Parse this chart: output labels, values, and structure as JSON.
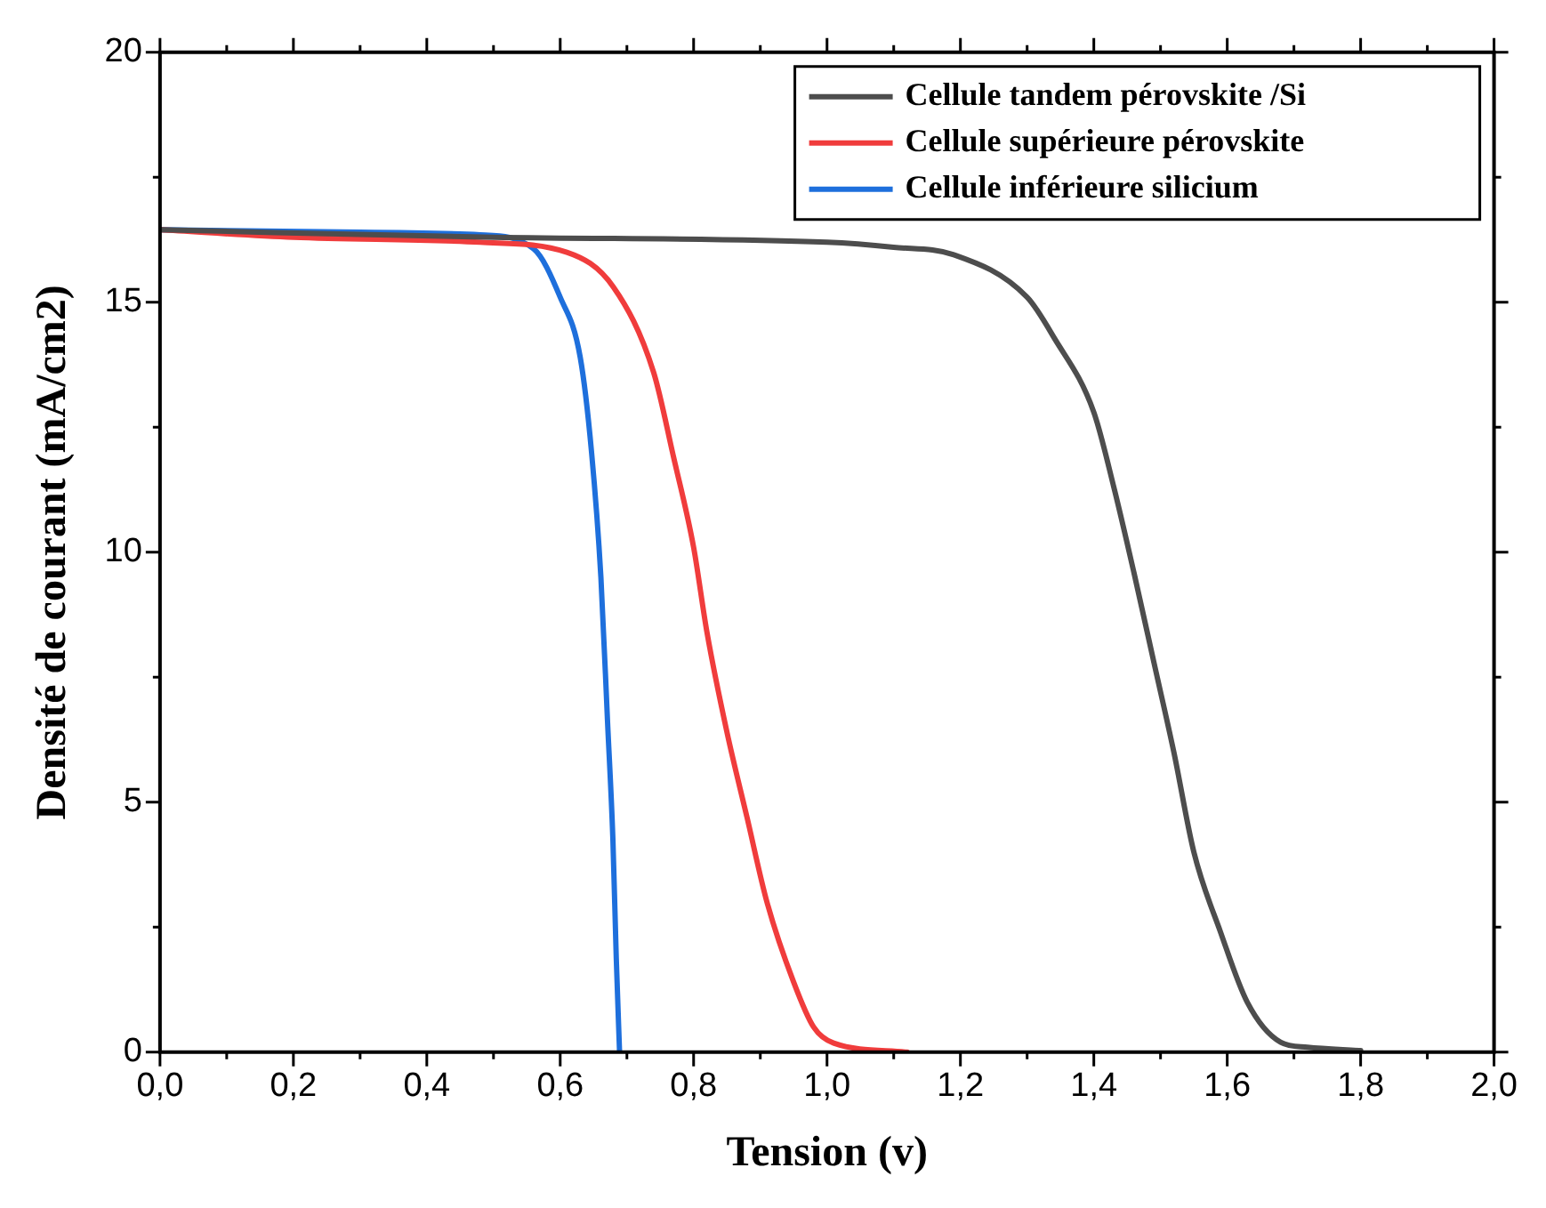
{
  "chart_data": {
    "type": "line",
    "xlabel": "Tension (v)",
    "ylabel": "Densité de courant (mA/cm2)",
    "xlim": [
      0,
      2
    ],
    "ylim": [
      0,
      20
    ],
    "xticks": [
      {
        "value": 0,
        "label": "0,0"
      },
      {
        "value": 0.2,
        "label": "0,2"
      },
      {
        "value": 0.4,
        "label": "0,4"
      },
      {
        "value": 0.6,
        "label": "0,6"
      },
      {
        "value": 0.8,
        "label": "0,8"
      },
      {
        "value": 1,
        "label": "1,0"
      },
      {
        "value": 1.2,
        "label": "1,2"
      },
      {
        "value": 1.4,
        "label": "1,4"
      },
      {
        "value": 1.6,
        "label": "1,6"
      },
      {
        "value": 1.8,
        "label": "1,8"
      },
      {
        "value": 2,
        "label": "2,0"
      }
    ],
    "yticks": [
      0,
      5,
      10,
      15,
      20
    ],
    "grid": false,
    "legend": "top right",
    "marker": "none",
    "line_style": "solid",
    "series": [
      {
        "name": "Cellule tandem pérovskite /Si",
        "color": "#4d4d4d",
        "x": [
          0,
          0.5,
          1.0,
          1.1,
          1.19,
          1.3,
          1.34,
          1.4,
          1.43,
          1.46,
          1.49,
          1.52,
          1.55,
          1.59,
          1.63,
          1.68,
          1.72,
          1.8
        ],
        "values": [
          16.45,
          16.3,
          16.2,
          16.1,
          15.95,
          15.1,
          14.3,
          12.8,
          11.3,
          9.6,
          7.8,
          6.0,
          4.0,
          2.4,
          1.0,
          0.2,
          0.1,
          0.03
        ]
      },
      {
        "name": "Cellule supérieure pérovskite",
        "color": "#f03c3c",
        "x": [
          0,
          0.2,
          0.48,
          0.61,
          0.68,
          0.74,
          0.77,
          0.8,
          0.82,
          0.85,
          0.88,
          0.91,
          0.95,
          0.98,
          1.01,
          1.12
        ],
        "values": [
          16.45,
          16.3,
          16.2,
          16.0,
          15.3,
          13.6,
          11.9,
          10.1,
          8.4,
          6.4,
          4.7,
          3.0,
          1.4,
          0.5,
          0.18,
          0
        ]
      },
      {
        "name": "Cellule inférieure silicium",
        "color": "#1e6fdc",
        "x": [
          0,
          0.3,
          0.48,
          0.56,
          0.6,
          0.63,
          0.647,
          0.661,
          0.671,
          0.679,
          0.684,
          0.689
        ],
        "values": [
          16.45,
          16.4,
          16.35,
          16.07,
          15.1,
          13.9,
          12.0,
          9.5,
          6.6,
          4.25,
          1.9,
          0
        ]
      }
    ]
  }
}
